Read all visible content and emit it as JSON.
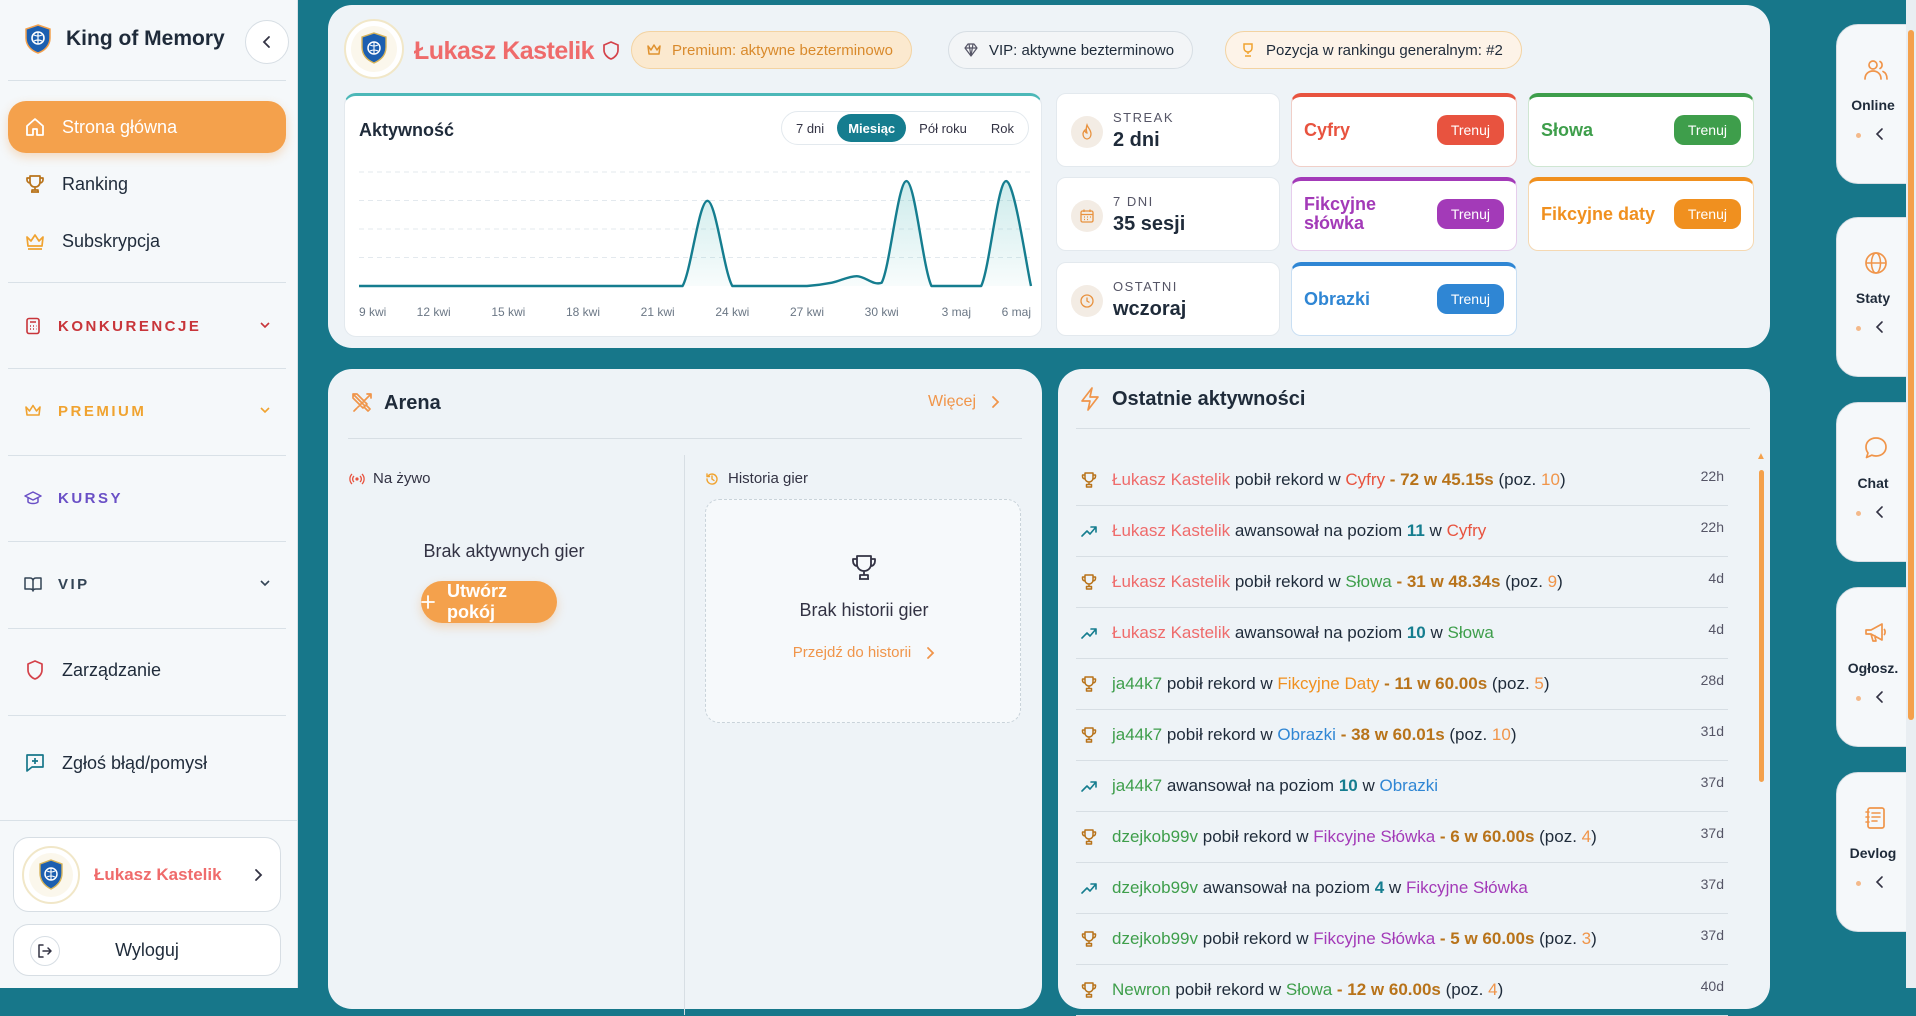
{
  "app": {
    "name": "King of Memory"
  },
  "sidebar": {
    "nav": [
      {
        "label": "Strona główna"
      },
      {
        "label": "Ranking"
      },
      {
        "label": "Subskrypcja"
      }
    ],
    "sections": [
      {
        "label": "KONKURENCJE",
        "color": "#c8353a"
      },
      {
        "label": "PREMIUM",
        "color": "#f0a330"
      },
      {
        "label": "KURSY",
        "color": "#6a50c6"
      },
      {
        "label": "VIP",
        "color": "#334455"
      }
    ],
    "admin_label": "Zarządzanie",
    "report_label": "Zgłoś błąd/pomysł",
    "user_name": "Łukasz Kastelik",
    "logout_label": "Wyloguj"
  },
  "profile": {
    "name": "Łukasz Kastelik",
    "premium": "Premium: aktywne bezterminowo",
    "vip": "VIP: aktywne bezterminowo",
    "rank": "Pozycja w rankingu generalnym: #2"
  },
  "activity": {
    "title": "Aktywność",
    "tabs": [
      "7 dni",
      "Miesiąc",
      "Pół roku",
      "Rok"
    ],
    "active_tab": "Miesiąc"
  },
  "chart_data": {
    "type": "area",
    "title": "Aktywność",
    "x_labels": [
      "9 kwi",
      "12 kwi",
      "15 kwi",
      "18 kwi",
      "21 kwi",
      "24 kwi",
      "27 kwi",
      "30 kwi",
      "3 maj",
      "6 maj"
    ],
    "x": [
      "9 kwi",
      "10 kwi",
      "11 kwi",
      "12 kwi",
      "13 kwi",
      "14 kwi",
      "15 kwi",
      "16 kwi",
      "17 kwi",
      "18 kwi",
      "19 kwi",
      "20 kwi",
      "21 kwi",
      "22 kwi",
      "23 kwi",
      "24 kwi",
      "25 kwi",
      "26 kwi",
      "27 kwi",
      "28 kwi",
      "29 kwi",
      "30 kwi",
      "1 maj",
      "2 maj",
      "3 maj",
      "4 maj",
      "5 maj",
      "6 maj"
    ],
    "values": [
      0,
      0,
      0,
      0,
      0,
      0,
      0,
      0,
      0,
      0,
      0,
      0,
      0,
      0,
      13,
      0,
      0,
      0,
      0,
      0.5,
      1.5,
      0.5,
      16,
      0,
      0,
      0,
      16,
      0
    ],
    "ylim": [
      0,
      18
    ],
    "grid": true
  },
  "stats": [
    {
      "label": "STREAK",
      "value": "2 dni",
      "icon": "flame-icon"
    },
    {
      "label": "7 DNI",
      "value": "35 sesji",
      "icon": "calendar-icon"
    },
    {
      "label": "OSTATNI",
      "value": "wczoraj",
      "icon": "clock-icon"
    }
  ],
  "disciplines": [
    {
      "name": "Cyfry",
      "color": "#e8533f",
      "button": "Trenuj"
    },
    {
      "name": "Słowa",
      "color": "#3e9e4b",
      "button": "Trenuj"
    },
    {
      "name": "Fikcyjne słówka",
      "color": "#a33ab8",
      "button": "Trenuj"
    },
    {
      "name": "Fikcyjne daty",
      "color": "#f0901f",
      "button": "Trenuj"
    },
    {
      "name": "Obrazki",
      "color": "#2f86d4",
      "button": "Trenuj"
    }
  ],
  "arena": {
    "title": "Arena",
    "more": "Więcej",
    "live_label": "Na żywo",
    "history_label": "Historia gier",
    "no_games": "Brak aktywnych gier",
    "create_room": "Utwórz pokój",
    "no_history": "Brak historii gier",
    "history_link": "Przejdź do historii"
  },
  "recent": {
    "title": "Ostatnie aktywności",
    "items": [
      {
        "icon": "trophy-icon",
        "user": "Łukasz Kastelik",
        "uc": "u-red",
        "mid": " pobił rekord w ",
        "disc": "Cyfry",
        "dc": "d-cyfry",
        "score": " - 72 w 45.15s",
        "pre": " (poz. ",
        "pos": "10",
        "post": ")",
        "time": "22h"
      },
      {
        "icon": "trend-icon",
        "user": "Łukasz Kastelik",
        "uc": "u-red",
        "mid": " awansował na poziom ",
        "level": "11",
        "mid2": " w ",
        "disc": "Cyfry",
        "dc": "d-cyfry",
        "time": "22h"
      },
      {
        "icon": "trophy-icon",
        "user": "Łukasz Kastelik",
        "uc": "u-red",
        "mid": " pobił rekord w ",
        "disc": "Słowa",
        "dc": "d-slowa",
        "score": " - 31 w 48.34s",
        "pre": " (poz. ",
        "pos": "9",
        "post": ")",
        "time": "4d"
      },
      {
        "icon": "trend-icon",
        "user": "Łukasz Kastelik",
        "uc": "u-red",
        "mid": " awansował na poziom ",
        "level": "10",
        "mid2": " w ",
        "disc": "Słowa",
        "dc": "d-slowa",
        "time": "4d"
      },
      {
        "icon": "trophy-icon",
        "user": "ja44k7",
        "uc": "u-green",
        "mid": " pobił rekord w ",
        "disc": "Fikcyjne Daty",
        "dc": "d-daty",
        "score": " - 11 w 60.00s",
        "pre": " (poz. ",
        "pos": "5",
        "post": ")",
        "time": "28d"
      },
      {
        "icon": "trophy-icon",
        "user": "ja44k7",
        "uc": "u-green",
        "mid": " pobił rekord w ",
        "disc": "Obrazki",
        "dc": "d-obrazki",
        "score": " - 38 w 60.01s",
        "pre": " (poz. ",
        "pos": "10",
        "post": ")",
        "time": "31d"
      },
      {
        "icon": "trend-icon",
        "user": "ja44k7",
        "uc": "u-green",
        "mid": " awansował na poziom ",
        "level": "10",
        "mid2": " w ",
        "disc": "Obrazki",
        "dc": "d-obrazki",
        "time": "37d"
      },
      {
        "icon": "trophy-icon",
        "user": "dzejkob99v",
        "uc": "u-green",
        "mid": " pobił rekord w ",
        "disc": "Fikcyjne Słówka",
        "dc": "d-slowka",
        "score": " - 6 w 60.00s",
        "pre": " (poz. ",
        "pos": "4",
        "post": ")",
        "time": "37d"
      },
      {
        "icon": "trend-icon",
        "user": "dzejkob99v",
        "uc": "u-green",
        "mid": " awansował na poziom ",
        "level": "4",
        "mid2": " w ",
        "disc": "Fikcyjne Słówka",
        "dc": "d-slowka",
        "time": "37d"
      },
      {
        "icon": "trophy-icon",
        "user": "dzejkob99v",
        "uc": "u-green",
        "mid": " pobił rekord w ",
        "disc": "Fikcyjne Słówka",
        "dc": "d-slowka",
        "score": " - 5 w 60.00s",
        "pre": " (poz. ",
        "pos": "3",
        "post": ")",
        "time": "37d"
      },
      {
        "icon": "trophy-icon",
        "user": "Newron",
        "uc": "u-green",
        "mid": " pobił rekord w ",
        "disc": "Słowa",
        "dc": "d-slowa",
        "score": " - 12 w 60.00s",
        "pre": " (poz. ",
        "pos": "4",
        "post": ")",
        "time": "40d"
      }
    ]
  },
  "dock": [
    {
      "label": "Online",
      "icon": "users-icon"
    },
    {
      "label": "Staty",
      "icon": "globe-icon"
    },
    {
      "label": "Chat",
      "icon": "chat-icon"
    },
    {
      "label": "Ogłosz.",
      "icon": "megaphone-icon"
    },
    {
      "label": "Devlog",
      "icon": "notebook-icon"
    }
  ]
}
